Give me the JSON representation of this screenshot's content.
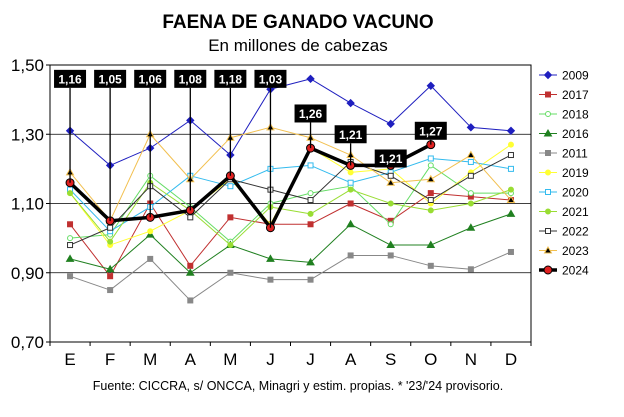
{
  "chart_data": {
    "type": "line",
    "title": "FAENA DE GANADO VACUNO",
    "subtitle": "En millones de cabezas",
    "source": "Fuente: CICCRA, s/ ONCCA, Minagri y estim. propias. * '23/'24 provisorio.",
    "categories": [
      "E",
      "F",
      "M",
      "A",
      "M",
      "J",
      "J",
      "A",
      "S",
      "O",
      "N",
      "D"
    ],
    "ylim": [
      0.7,
      1.5
    ],
    "yticks": [
      "0,70",
      "0,90",
      "1,10",
      "1,30",
      "1,50"
    ],
    "ytick_values": [
      0.7,
      0.9,
      1.1,
      1.3,
      1.5
    ],
    "grid": true,
    "legend_position": "right",
    "series": [
      {
        "name": "2009",
        "color": "#1f1fbf",
        "marker": "diamond",
        "fill": "#1f1fbf",
        "values": [
          1.31,
          1.21,
          1.26,
          1.34,
          1.24,
          1.43,
          1.46,
          1.39,
          1.33,
          1.44,
          1.32,
          1.31
        ]
      },
      {
        "name": "2017",
        "color": "#c03030",
        "marker": "square",
        "fill": "#c03030",
        "values": [
          1.04,
          0.89,
          1.1,
          0.92,
          1.06,
          1.04,
          1.04,
          1.1,
          1.05,
          1.13,
          1.12,
          1.11
        ]
      },
      {
        "name": "2018",
        "color": "#66dd66",
        "marker": "circle",
        "fill": "#ffffff",
        "values": [
          1.0,
          1.01,
          1.18,
          1.09,
          0.99,
          1.1,
          1.13,
          1.15,
          1.04,
          1.21,
          1.13,
          1.13
        ]
      },
      {
        "name": "2016",
        "color": "#208020",
        "marker": "triangle",
        "fill": "#208020",
        "values": [
          0.94,
          0.91,
          1.01,
          0.9,
          0.98,
          0.94,
          0.93,
          1.04,
          0.98,
          0.98,
          1.03,
          1.07
        ]
      },
      {
        "name": "2011",
        "color": "#888888",
        "marker": "square",
        "fill": "#888888",
        "values": [
          0.89,
          0.85,
          0.94,
          0.82,
          0.9,
          0.88,
          0.88,
          0.95,
          0.95,
          0.92,
          0.91,
          0.96
        ]
      },
      {
        "name": "2019",
        "color": "#ffff33",
        "marker": "circle",
        "fill": "#ffff33",
        "values": [
          1.13,
          0.98,
          1.02,
          1.08,
          1.17,
          1.04,
          1.26,
          1.19,
          1.2,
          1.1,
          1.19,
          1.27
        ]
      },
      {
        "name": "2020",
        "color": "#33bbee",
        "marker": "square",
        "fill": "#ffffff",
        "values": [
          1.14,
          1.02,
          1.09,
          1.18,
          1.15,
          1.2,
          1.21,
          1.16,
          1.19,
          1.23,
          1.22,
          1.2
        ]
      },
      {
        "name": "2021",
        "color": "#99dd33",
        "marker": "circle",
        "fill": "#99dd33",
        "values": [
          1.13,
          0.99,
          1.16,
          1.08,
          0.98,
          1.09,
          1.07,
          1.14,
          1.1,
          1.08,
          1.1,
          1.14
        ]
      },
      {
        "name": "2022",
        "color": "#333333",
        "marker": "square",
        "fill": "#ffffff",
        "values": [
          0.98,
          1.03,
          1.15,
          1.06,
          1.17,
          1.14,
          1.11,
          1.22,
          1.18,
          1.11,
          1.18,
          1.24
        ]
      },
      {
        "name": "2023",
        "color": "#f2c050",
        "marker": "triangle",
        "fill": "#000000",
        "values": [
          1.19,
          1.05,
          1.3,
          1.17,
          1.29,
          1.32,
          1.29,
          1.24,
          1.16,
          1.17,
          1.24,
          1.11
        ]
      },
      {
        "name": "2024",
        "color": "#000000",
        "marker": "circle",
        "fill": "#e02020",
        "bold": true,
        "values": [
          1.16,
          1.05,
          1.06,
          1.08,
          1.18,
          1.03,
          1.26,
          1.21,
          1.21,
          1.27,
          null,
          null
        ]
      }
    ],
    "callouts": [
      {
        "index": 0,
        "label": "1,16",
        "level": 1.46
      },
      {
        "index": 1,
        "label": "1,05",
        "level": 1.46
      },
      {
        "index": 2,
        "label": "1,06",
        "level": 1.46
      },
      {
        "index": 3,
        "label": "1,08",
        "level": 1.46
      },
      {
        "index": 4,
        "label": "1,18",
        "level": 1.46
      },
      {
        "index": 5,
        "label": "1,03",
        "level": 1.46
      },
      {
        "index": 6,
        "label": "1,26",
        "level": 1.36
      },
      {
        "index": 7,
        "label": "1,21",
        "level": 1.3
      },
      {
        "index": 8,
        "label": "1,21",
        "level": 1.23
      },
      {
        "index": 9,
        "label": "1,27",
        "level": 1.31
      }
    ]
  }
}
